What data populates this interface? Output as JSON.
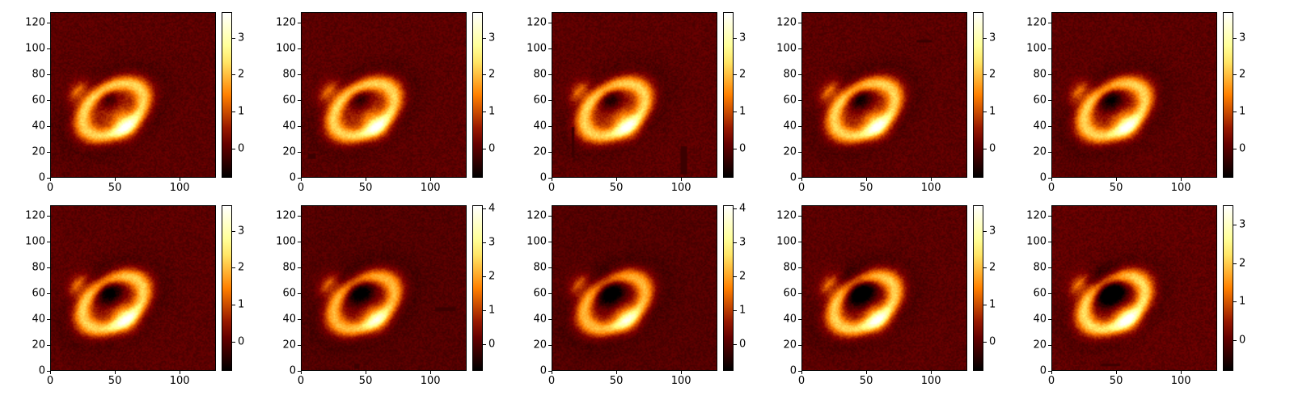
{
  "chart_data": {
    "type": "heatmap",
    "colormap": "afmhot",
    "grid": false,
    "axis_x_ticks": [
      "0",
      "50",
      "100"
    ],
    "axis_y_ticks": [
      "0",
      "20",
      "40",
      "60",
      "80",
      "100",
      "120"
    ],
    "xlim": [
      0,
      128
    ],
    "ylim": [
      0,
      128
    ],
    "panels": [
      {
        "colorbar_ticks": [
          "0",
          "1",
          "2",
          "3"
        ],
        "vmin": -0.8,
        "vmax": 3.7,
        "artifacts": []
      },
      {
        "colorbar_ticks": [
          "0",
          "1",
          "2",
          "3"
        ],
        "vmin": -0.8,
        "vmax": 3.7,
        "artifacts": [
          [
            5,
            14,
            6,
            4
          ]
        ]
      },
      {
        "colorbar_ticks": [
          "0",
          "1",
          "2",
          "3"
        ],
        "vmin": -0.8,
        "vmax": 3.7,
        "artifacts": [
          [
            15,
            15,
            2,
            24
          ],
          [
            100,
            2,
            5,
            22
          ]
        ]
      },
      {
        "colorbar_ticks": [
          "0",
          "1",
          "2",
          "3"
        ],
        "vmin": -0.8,
        "vmax": 3.7,
        "artifacts": [
          [
            89,
            105,
            12,
            2
          ]
        ]
      },
      {
        "colorbar_ticks": [
          "0",
          "1",
          "2",
          "3"
        ],
        "vmin": -0.8,
        "vmax": 3.7,
        "artifacts": []
      },
      {
        "colorbar_ticks": [
          "0",
          "1",
          "2",
          "3"
        ],
        "vmin": -0.8,
        "vmax": 3.7,
        "artifacts": []
      },
      {
        "colorbar_ticks": [
          "0",
          "1",
          "2",
          "3",
          "4"
        ],
        "vmin": -0.8,
        "vmax": 4.1,
        "artifacts": [
          [
            104,
            46,
            16,
            3
          ],
          [
            41,
            1,
            4,
            4
          ]
        ]
      },
      {
        "colorbar_ticks": [
          "0",
          "1",
          "2",
          "3",
          "4"
        ],
        "vmin": -0.8,
        "vmax": 4.1,
        "artifacts": []
      },
      {
        "colorbar_ticks": [
          "0",
          "1",
          "2",
          "3"
        ],
        "vmin": -0.8,
        "vmax": 3.7,
        "artifacts": []
      },
      {
        "colorbar_ticks": [
          "0",
          "1",
          "2",
          "3"
        ],
        "vmin": -0.8,
        "vmax": 3.5,
        "artifacts": [
          [
            38,
            3,
            15,
            2
          ]
        ]
      }
    ]
  }
}
